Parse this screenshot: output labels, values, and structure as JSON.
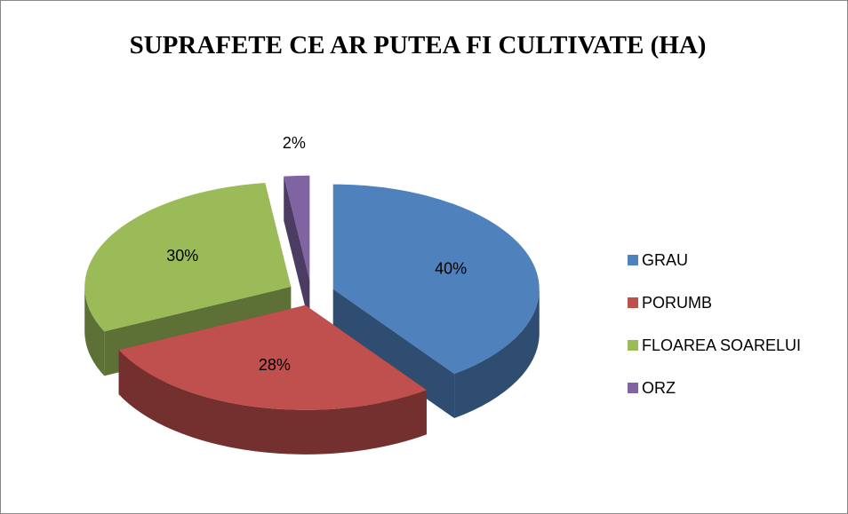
{
  "chart_data": {
    "type": "pie",
    "title": "SUPRAFETE CE AR PUTEA FI CULTIVATE (HA)",
    "categories": [
      "GRAU",
      "PORUMB",
      "FLOAREA SOARELUI",
      "ORZ"
    ],
    "values": [
      40,
      28,
      30,
      2
    ],
    "value_labels": [
      "40%",
      "28%",
      "30%",
      "2%"
    ],
    "colors": [
      "#4f81bd",
      "#c0504d",
      "#9bbb59",
      "#8064a2"
    ],
    "legend": "right"
  }
}
